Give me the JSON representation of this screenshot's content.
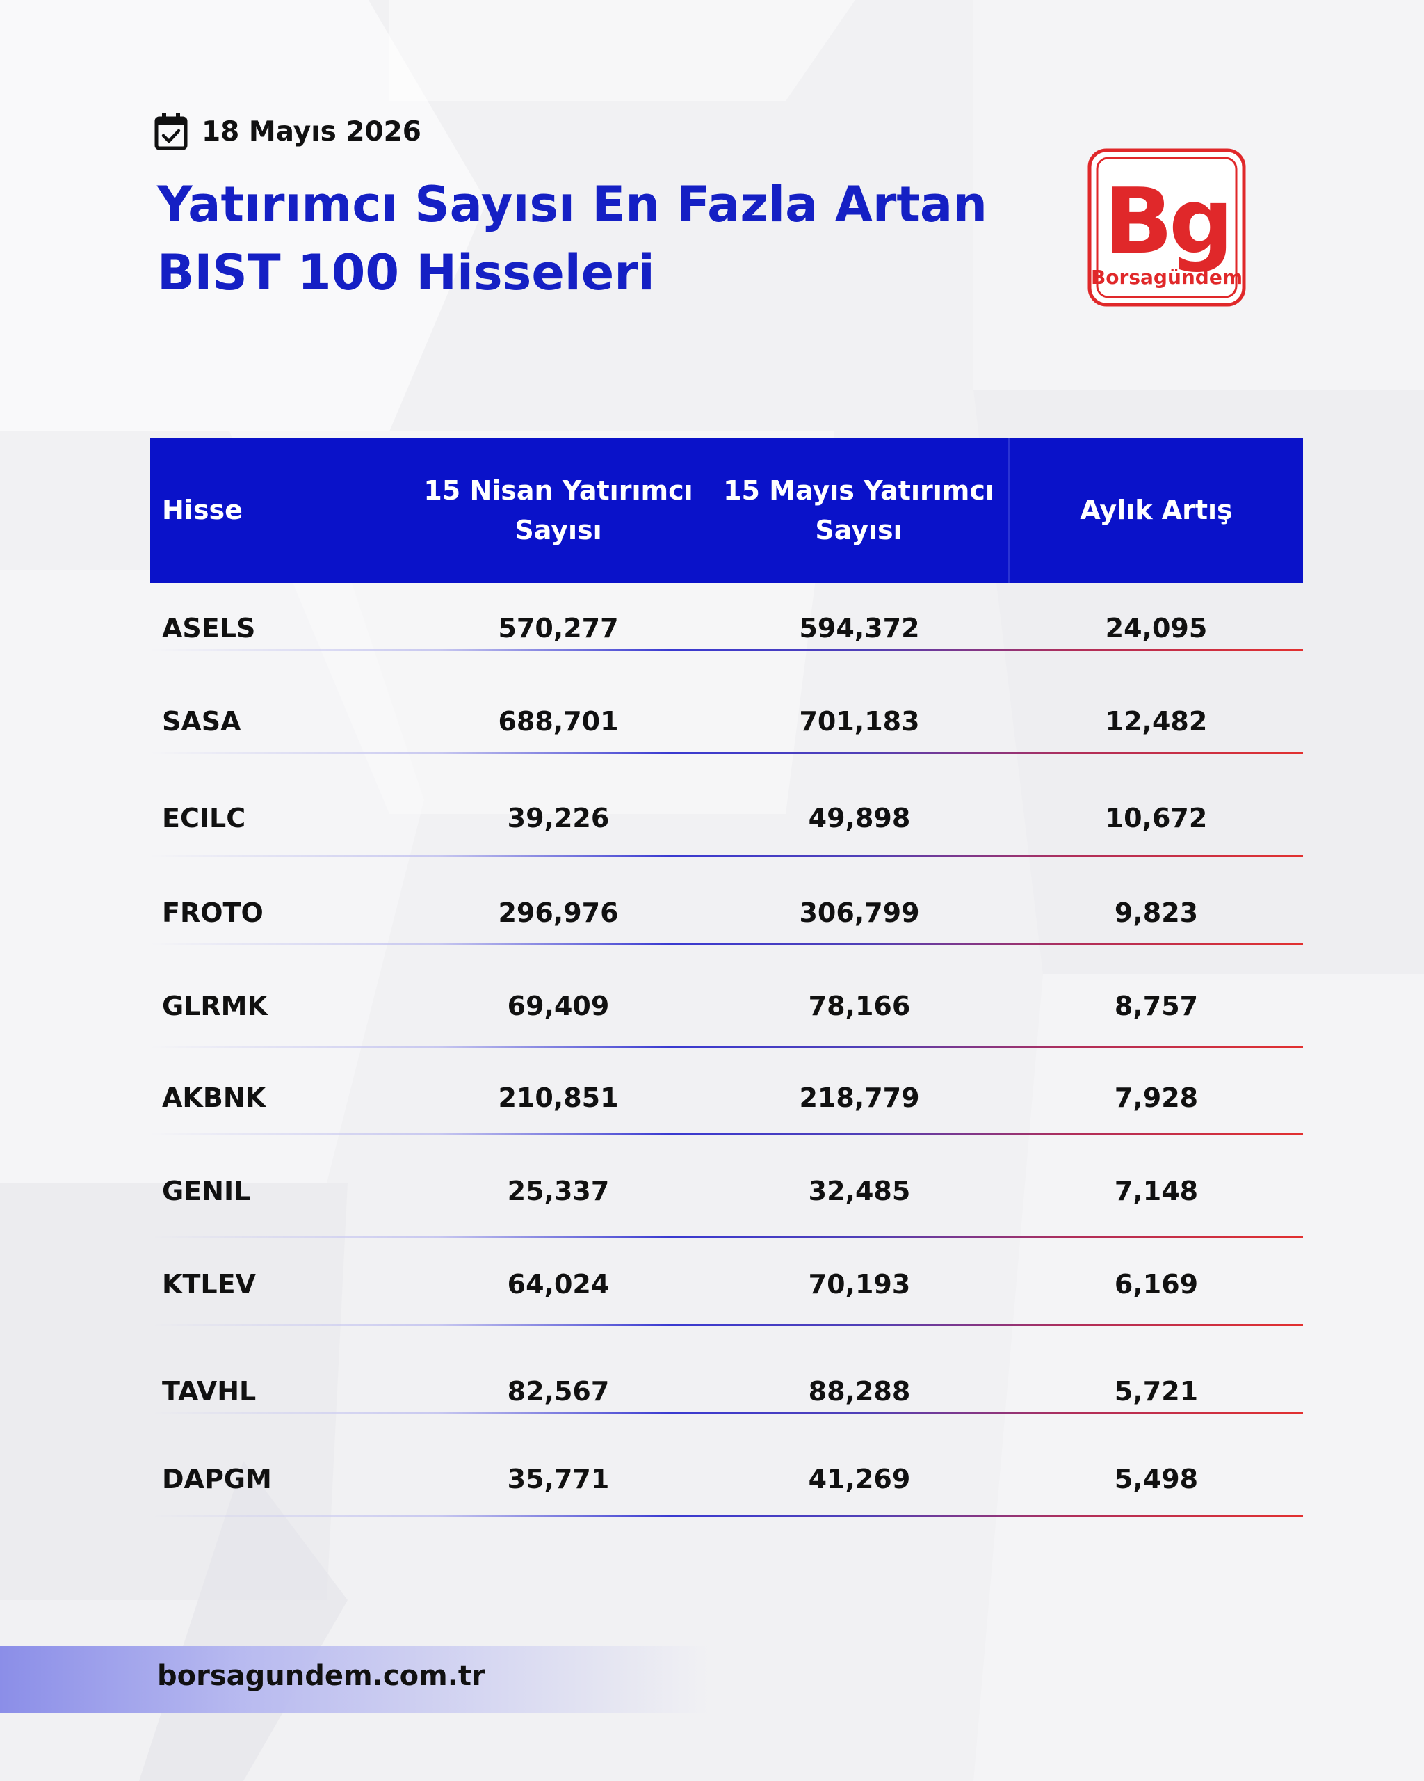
{
  "header": {
    "date": "18 Mayıs 2026",
    "title_line1": "Yatırımcı Sayısı En Fazla Artan",
    "title_line2": "BIST 100 Hisseleri"
  },
  "logo": {
    "mark": "Bg",
    "name": "Borsagundem"
  },
  "table": {
    "columns": [
      "Hisse",
      "15 Nisan Yatırımcı Sayısı",
      "15 Mayıs Yatırımcı Sayısı",
      "Aylık Artış"
    ],
    "rows": [
      [
        "ASELS",
        "570,277",
        "594,372",
        "24,095"
      ],
      [
        "SASA",
        "688,701",
        "701,183",
        "12,482"
      ],
      [
        "ECILC",
        "39,226",
        "49,898",
        "10,672"
      ],
      [
        "FROTO",
        "296,976",
        "306,799",
        "9,823"
      ],
      [
        "GLRMK",
        "69,409",
        "78,166",
        "8,757"
      ],
      [
        "AKBNK",
        "210,851",
        "218,779",
        "7,928"
      ],
      [
        "GENIL",
        "25,337",
        "32,485",
        "7,148"
      ],
      [
        "KTLEV",
        "64,024",
        "70,193",
        "6,169"
      ],
      [
        "TAVHL",
        "82,567",
        "88,288",
        "5,721"
      ],
      [
        "DAPGM",
        "35,771",
        "41,269",
        "5,498"
      ]
    ]
  },
  "footer": {
    "url": "borsagundem.com.tr"
  },
  "colors": {
    "accent_blue": "#0a12c9",
    "title_blue": "#1520c4",
    "brand_red": "#e0282a"
  },
  "icons": {
    "date": "calendar-check-icon"
  }
}
